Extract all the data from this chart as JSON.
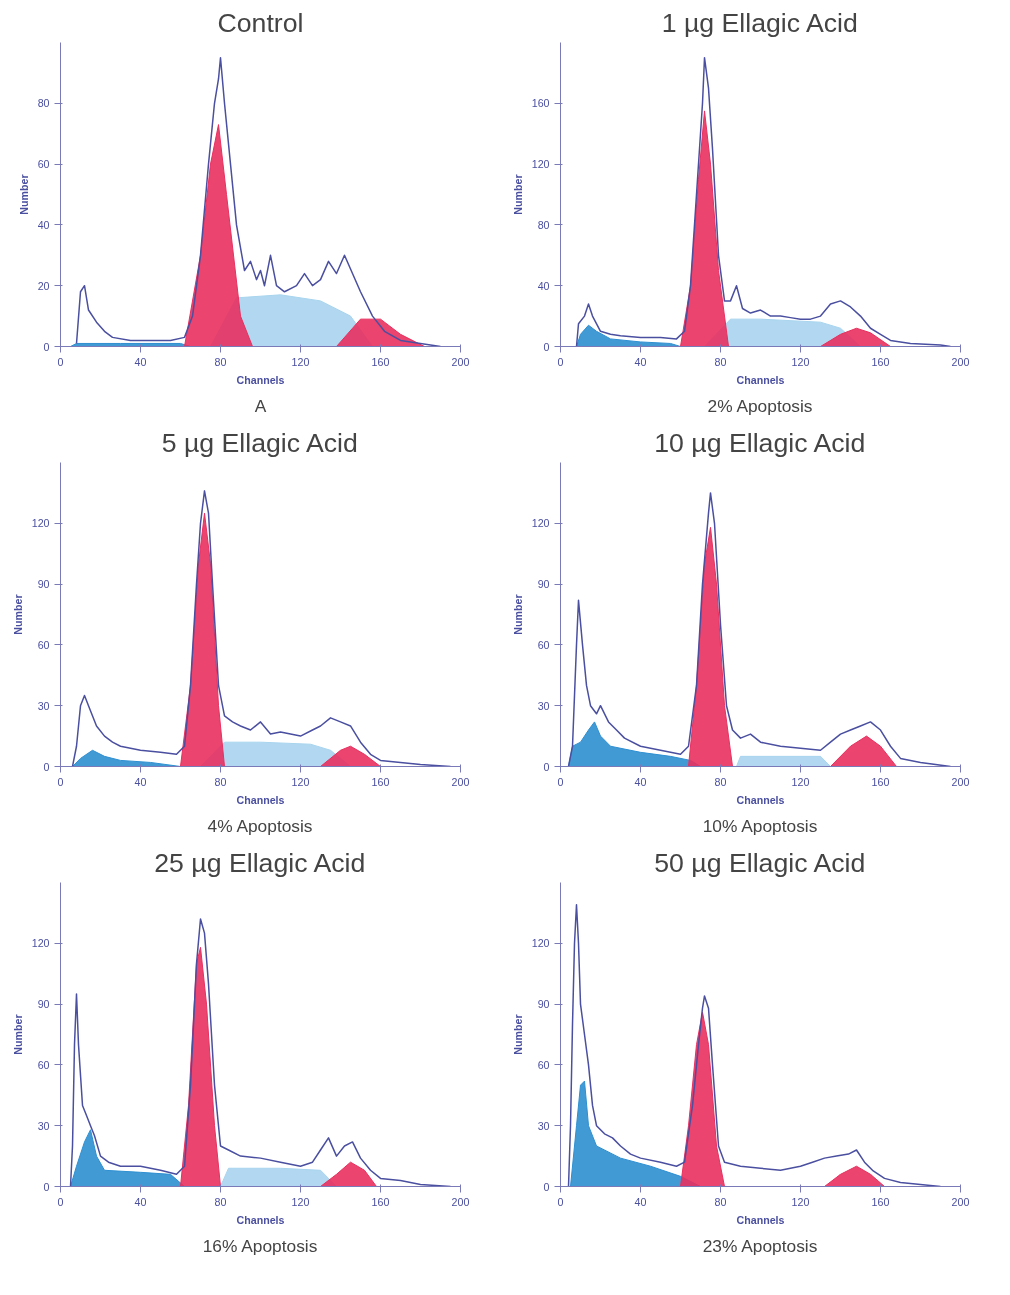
{
  "chart_data": [
    {
      "type": "area",
      "title": "Control",
      "xlabel": "Channels",
      "ylabel": "Number",
      "annotations": [
        "A"
      ],
      "xlim": [
        0,
        200
      ],
      "ylim": [
        0,
        100
      ],
      "xticks": [
        0,
        40,
        80,
        120,
        160,
        200
      ],
      "yticks": [
        0,
        20,
        40,
        60,
        80
      ],
      "grid": false,
      "series": [
        {
          "color": "#2e8fd0",
          "x": [
            5,
            8,
            30,
            60,
            65
          ],
          "values": [
            0,
            1,
            1,
            1,
            0
          ]
        },
        {
          "color": "#a8d4ee",
          "x": [
            75,
            88,
            110,
            130,
            145,
            156
          ],
          "values": [
            0,
            16,
            17,
            15,
            10,
            0
          ]
        },
        {
          "color": "#e8305f",
          "x": [
            62,
            70,
            75,
            79,
            83,
            90,
            96
          ],
          "values": [
            0,
            30,
            60,
            73,
            50,
            10,
            0
          ]
        },
        {
          "color": "#e8305f",
          "x": [
            138,
            150,
            160,
            170,
            182
          ],
          "values": [
            0,
            9,
            9,
            4,
            0
          ]
        },
        {
          "type": "line",
          "color": "#4a4fa0",
          "x": [
            8,
            10,
            12,
            14,
            18,
            22,
            26,
            35,
            45,
            55,
            62,
            66,
            70,
            74,
            77,
            79,
            80,
            82,
            85,
            88,
            92,
            95,
            98,
            100,
            102,
            105,
            108,
            112,
            118,
            122,
            126,
            130,
            134,
            138,
            142,
            146,
            150,
            156,
            162,
            170,
            180,
            190
          ],
          "values": [
            1,
            18,
            20,
            12,
            8,
            5,
            3,
            2,
            2,
            2,
            3,
            10,
            30,
            60,
            80,
            88,
            95,
            80,
            60,
            40,
            25,
            28,
            22,
            25,
            20,
            30,
            20,
            18,
            20,
            24,
            20,
            22,
            28,
            24,
            30,
            24,
            18,
            10,
            5,
            2,
            1,
            0
          ]
        }
      ]
    },
    {
      "type": "area",
      "title": "1 µg Ellagic Acid",
      "xlabel": "Channels",
      "ylabel": "Number",
      "annotations": [
        "2% Apoptosis"
      ],
      "xlim": [
        0,
        200
      ],
      "ylim": [
        0,
        200
      ],
      "xticks": [
        0,
        40,
        80,
        120,
        160,
        200
      ],
      "yticks": [
        0,
        40,
        80,
        120,
        160
      ],
      "grid": false,
      "series": [
        {
          "color": "#2e8fd0",
          "x": [
            8,
            10,
            14,
            18,
            25,
            40,
            55,
            60
          ],
          "values": [
            0,
            8,
            14,
            10,
            5,
            3,
            2,
            0
          ]
        },
        {
          "color": "#a8d4ee",
          "x": [
            72,
            85,
            100,
            130,
            140,
            150
          ],
          "values": [
            0,
            18,
            18,
            16,
            12,
            0
          ]
        },
        {
          "color": "#e8305f",
          "x": [
            60,
            65,
            69,
            72,
            75,
            79,
            84
          ],
          "values": [
            0,
            40,
            110,
            155,
            120,
            50,
            0
          ]
        },
        {
          "color": "#e8305f",
          "x": [
            130,
            140,
            148,
            155,
            165
          ],
          "values": [
            0,
            8,
            12,
            9,
            0
          ]
        },
        {
          "type": "line",
          "color": "#4a4fa0",
          "x": [
            8,
            9,
            12,
            14,
            16,
            20,
            25,
            30,
            40,
            50,
            58,
            62,
            65,
            68,
            71,
            72,
            74,
            76,
            79,
            82,
            85,
            88,
            91,
            95,
            100,
            105,
            110,
            115,
            120,
            125,
            130,
            135,
            140,
            145,
            150,
            155,
            160,
            165,
            175,
            190,
            195
          ],
          "values": [
            0,
            15,
            20,
            28,
            20,
            10,
            8,
            7,
            6,
            6,
            5,
            10,
            40,
            100,
            160,
            190,
            170,
            130,
            60,
            30,
            30,
            40,
            25,
            22,
            24,
            20,
            20,
            19,
            18,
            18,
            20,
            28,
            30,
            26,
            20,
            12,
            8,
            4,
            2,
            1,
            0
          ]
        }
      ]
    },
    {
      "type": "area",
      "title": "5 µg Ellagic Acid",
      "xlabel": "Channels",
      "ylabel": "Number",
      "annotations": [
        "4% Apoptosis"
      ],
      "xlim": [
        0,
        200
      ],
      "ylim": [
        0,
        150
      ],
      "xticks": [
        0,
        40,
        80,
        120,
        160,
        200
      ],
      "yticks": [
        0,
        30,
        60,
        90,
        120
      ],
      "grid": false,
      "series": [
        {
          "color": "#2e8fd0",
          "x": [
            6,
            10,
            16,
            22,
            30,
            45,
            60
          ],
          "values": [
            0,
            4,
            8,
            5,
            3,
            2,
            0
          ]
        },
        {
          "color": "#a8d4ee",
          "x": [
            70,
            82,
            100,
            125,
            135,
            145
          ],
          "values": [
            0,
            12,
            12,
            11,
            8,
            0
          ]
        },
        {
          "color": "#e8305f",
          "x": [
            60,
            65,
            69,
            72,
            75,
            79,
            82
          ],
          "values": [
            0,
            40,
            100,
            125,
            100,
            30,
            0
          ]
        },
        {
          "color": "#e8305f",
          "x": [
            130,
            140,
            145,
            152,
            160
          ],
          "values": [
            0,
            8,
            10,
            6,
            0
          ]
        },
        {
          "type": "line",
          "color": "#4a4fa0",
          "x": [
            6,
            8,
            10,
            12,
            14,
            18,
            22,
            26,
            30,
            40,
            50,
            58,
            62,
            65,
            68,
            70,
            72,
            74,
            76,
            79,
            82,
            86,
            90,
            95,
            100,
            105,
            110,
            120,
            126,
            130,
            135,
            140,
            145,
            150,
            155,
            160,
            170,
            180,
            195
          ],
          "values": [
            0,
            10,
            30,
            35,
            30,
            20,
            15,
            12,
            10,
            8,
            7,
            6,
            10,
            40,
            90,
            120,
            136,
            125,
            90,
            40,
            25,
            22,
            20,
            18,
            22,
            16,
            17,
            15,
            18,
            20,
            24,
            22,
            20,
            12,
            6,
            3,
            2,
            1,
            0
          ]
        }
      ]
    },
    {
      "type": "area",
      "title": "10 µg Ellagic Acid",
      "xlabel": "Channels",
      "ylabel": "Number",
      "annotations": [
        "10% Apoptosis"
      ],
      "xlim": [
        0,
        200
      ],
      "ylim": [
        0,
        150
      ],
      "xticks": [
        0,
        40,
        80,
        120,
        160,
        200
      ],
      "yticks": [
        0,
        30,
        60,
        90,
        120
      ],
      "grid": false,
      "series": [
        {
          "color": "#2e8fd0",
          "x": [
            4,
            6,
            10,
            14,
            17,
            20,
            25,
            40,
            55,
            65,
            70
          ],
          "values": [
            0,
            10,
            12,
            18,
            22,
            15,
            10,
            7,
            5,
            3,
            0
          ]
        },
        {
          "color": "#a8d4ee",
          "x": [
            88,
            90,
            130,
            135
          ],
          "values": [
            0,
            5,
            5,
            0
          ]
        },
        {
          "color": "#e8305f",
          "x": [
            64,
            68,
            72,
            75,
            78,
            82,
            86
          ],
          "values": [
            0,
            40,
            100,
            118,
            90,
            30,
            0
          ]
        },
        {
          "color": "#e8305f",
          "x": [
            135,
            145,
            153,
            160,
            168
          ],
          "values": [
            0,
            10,
            15,
            10,
            0
          ]
        },
        {
          "type": "line",
          "color": "#4a4fa0",
          "x": [
            4,
            6,
            8,
            9,
            11,
            13,
            15,
            18,
            20,
            24,
            28,
            32,
            40,
            50,
            60,
            64,
            68,
            71,
            74,
            75,
            77,
            80,
            83,
            86,
            90,
            95,
            100,
            110,
            120,
            130,
            135,
            140,
            145,
            150,
            155,
            160,
            165,
            170,
            180,
            195
          ],
          "values": [
            0,
            10,
            60,
            82,
            60,
            40,
            30,
            26,
            30,
            22,
            18,
            14,
            10,
            8,
            6,
            10,
            40,
            90,
            125,
            135,
            120,
            70,
            30,
            18,
            14,
            16,
            12,
            10,
            9,
            8,
            12,
            16,
            18,
            20,
            22,
            18,
            10,
            4,
            2,
            0
          ]
        }
      ]
    },
    {
      "type": "area",
      "title": "25 µg Ellagic Acid",
      "xlabel": "Channels",
      "ylabel": "Number",
      "annotations": [
        "16% Apoptosis"
      ],
      "xlim": [
        0,
        200
      ],
      "ylim": [
        0,
        150
      ],
      "xticks": [
        0,
        40,
        80,
        120,
        160,
        200
      ],
      "yticks": [
        0,
        30,
        60,
        90,
        120
      ],
      "grid": false,
      "series": [
        {
          "color": "#2e8fd0",
          "x": [
            5,
            8,
            12,
            15,
            18,
            22,
            40,
            55,
            62
          ],
          "values": [
            0,
            10,
            22,
            28,
            15,
            8,
            7,
            6,
            0
          ]
        },
        {
          "color": "#a8d4ee",
          "x": [
            80,
            84,
            110,
            130,
            138
          ],
          "values": [
            0,
            9,
            9,
            8,
            0
          ]
        },
        {
          "color": "#e8305f",
          "x": [
            60,
            64,
            68,
            70,
            73,
            77,
            80
          ],
          "values": [
            0,
            40,
            110,
            118,
            90,
            30,
            0
          ]
        },
        {
          "color": "#e8305f",
          "x": [
            130,
            138,
            145,
            152,
            158
          ],
          "values": [
            0,
            6,
            12,
            8,
            0
          ]
        },
        {
          "type": "line",
          "color": "#4a4fa0",
          "x": [
            5,
            6,
            7,
            8,
            9,
            11,
            13,
            15,
            17,
            20,
            24,
            30,
            40,
            50,
            58,
            62,
            65,
            68,
            70,
            72,
            74,
            77,
            80,
            84,
            90,
            100,
            110,
            120,
            126,
            130,
            134,
            138,
            142,
            146,
            150,
            155,
            160,
            170,
            180,
            195
          ],
          "values": [
            0,
            20,
            70,
            95,
            70,
            40,
            35,
            30,
            25,
            15,
            12,
            10,
            10,
            8,
            6,
            10,
            50,
            110,
            132,
            125,
            100,
            50,
            20,
            18,
            15,
            14,
            12,
            10,
            12,
            18,
            24,
            15,
            20,
            22,
            14,
            8,
            4,
            3,
            1,
            0
          ]
        }
      ]
    },
    {
      "type": "area",
      "title": "50 µg Ellagic Acid",
      "xlabel": "Channels",
      "ylabel": "Number",
      "annotations": [
        "23% Apoptosis"
      ],
      "xlim": [
        0,
        200
      ],
      "ylim": [
        0,
        150
      ],
      "xticks": [
        0,
        40,
        80,
        120,
        160,
        200
      ],
      "yticks": [
        0,
        30,
        60,
        90,
        120
      ],
      "grid": false,
      "series": [
        {
          "color": "#2e8fd0",
          "x": [
            5,
            8,
            10,
            12,
            14,
            18,
            30,
            45,
            60,
            70
          ],
          "values": [
            0,
            30,
            50,
            52,
            30,
            20,
            14,
            10,
            5,
            0
          ]
        },
        {
          "color": "#e8305f",
          "x": [
            60,
            64,
            68,
            71,
            74,
            78,
            82
          ],
          "values": [
            0,
            30,
            70,
            86,
            70,
            20,
            0
          ]
        },
        {
          "color": "#e8305f",
          "x": [
            132,
            140,
            148,
            155,
            162
          ],
          "values": [
            0,
            6,
            10,
            6,
            0
          ]
        },
        {
          "type": "line",
          "color": "#4a4fa0",
          "x": [
            4,
            5,
            6,
            7,
            8,
            9,
            10,
            12,
            14,
            16,
            18,
            22,
            26,
            30,
            35,
            40,
            50,
            58,
            62,
            66,
            69,
            71,
            72,
            74,
            76,
            79,
            82,
            90,
            100,
            110,
            120,
            126,
            132,
            138,
            144,
            148,
            152,
            156,
            162,
            170,
            180,
            190
          ],
          "values": [
            0,
            30,
            80,
            120,
            139,
            120,
            90,
            75,
            60,
            40,
            30,
            26,
            24,
            20,
            16,
            14,
            12,
            10,
            12,
            40,
            70,
            88,
            94,
            88,
            60,
            20,
            12,
            10,
            9,
            8,
            10,
            12,
            14,
            15,
            16,
            18,
            12,
            8,
            4,
            2,
            1,
            0
          ]
        }
      ]
    }
  ]
}
